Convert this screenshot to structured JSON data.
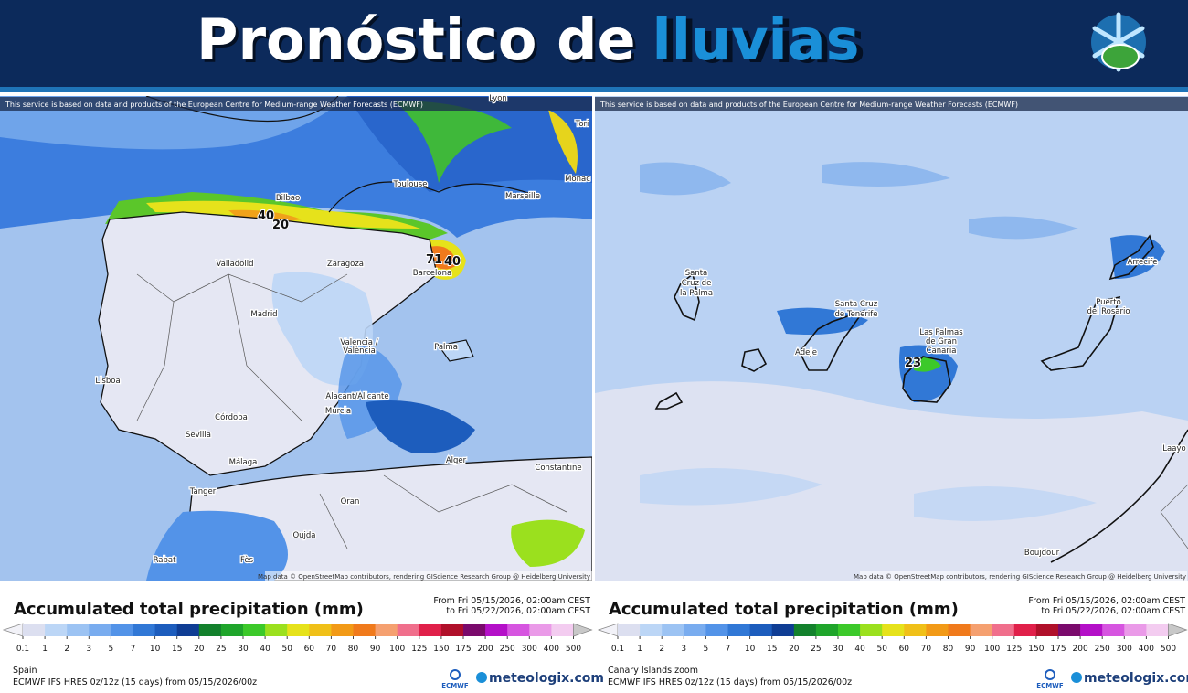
{
  "header": {
    "title": "Pronóstico de",
    "title_highlight": "lluvias"
  },
  "panels": [
    {
      "notice": "This service is based on data and products of the European Centre for Medium-range Weather Forecasts (ECMWF)",
      "attribution": "Map data © OpenStreetMap contributors, rendering GIScience Research Group @ Heidelberg University",
      "region": "Spain",
      "map_labels": [
        "Lyon",
        "Tori",
        "Monac",
        "Toulouse",
        "Marseille",
        "Bilbao",
        "Valladolid",
        "Zaragoza",
        "Barcelona",
        "Madrid",
        "Valencia /",
        "València",
        "Palma",
        "Lisboa",
        "Córdoba",
        "Alacant/Alicante",
        "Murcia",
        "Sevilla",
        "Málaga",
        "Alger",
        "Constantine",
        "Tanger",
        "Oran",
        "Oujda",
        "Rabat",
        "Fès"
      ],
      "amount_labels": [
        71,
        40,
        20,
        40
      ]
    },
    {
      "notice": "This service is based on data and products of the European Centre for Medium-range Weather Forecasts (ECMWF)",
      "attribution": "Map data © OpenStreetMap contributors, rendering GIScience Research Group @ Heidelberg University",
      "region": "Canary Islands zoom",
      "map_labels": [
        "Santa",
        "Cruz de",
        "la Palma",
        "Santa Cruz",
        "de Tenerife",
        "Adeje",
        "Las Palmas",
        "de Gran",
        "Canaria",
        "Arrecife",
        "Puerto",
        "del Rosario",
        "Boujdour",
        "Laayo"
      ],
      "amount_labels": [
        23
      ]
    }
  ],
  "legend": {
    "title": "Accumulated total precipitation (mm)",
    "from": "From Fri 05/15/2026, 02:00am CEST",
    "to": "to Fri 05/22/2026, 02:00am CEST",
    "ticks": [
      0.1,
      1,
      2,
      3,
      5,
      7,
      10,
      15,
      20,
      25,
      30,
      40,
      50,
      60,
      70,
      80,
      90,
      100,
      125,
      150,
      175,
      200,
      250,
      300,
      400,
      500
    ],
    "colors": [
      "#dcdff0",
      "#bcd6f6",
      "#9cc3f3",
      "#79acef",
      "#5393e8",
      "#3178d6",
      "#1d5dbd",
      "#0f3d94",
      "#13812c",
      "#1fa52b",
      "#3cc92a",
      "#9be01e",
      "#e6e21b",
      "#f0c018",
      "#f29a17",
      "#f07a1c",
      "#f5a070",
      "#f06f8c",
      "#e0204a",
      "#b0102a",
      "#7a0a6c",
      "#b410c8",
      "#d655e0",
      "#ea9ae8",
      "#f3ccf0"
    ]
  },
  "footer": {
    "model": "ECMWF IFS HRES 0z/12z (15 days) from 05/15/2026/00z",
    "ecmwf": "ECMWF",
    "brand": "meteologix.com"
  }
}
